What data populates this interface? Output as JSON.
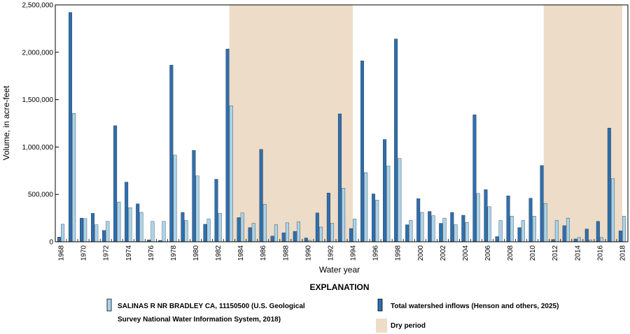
{
  "chart_data": {
    "type": "bar",
    "x": [
      1968,
      1969,
      1970,
      1971,
      1972,
      1973,
      1974,
      1975,
      1976,
      1977,
      1978,
      1979,
      1980,
      1981,
      1982,
      1983,
      1984,
      1985,
      1986,
      1987,
      1988,
      1989,
      1990,
      1991,
      1992,
      1993,
      1994,
      1995,
      1996,
      1997,
      1998,
      1999,
      2000,
      2001,
      2002,
      2003,
      2004,
      2005,
      2006,
      2007,
      2008,
      2009,
      2010,
      2011,
      2012,
      2013,
      2014,
      2015,
      2016,
      2017,
      2018
    ],
    "series": [
      {
        "name": "Total watershed inflows (Henson and others, 2025)",
        "color": "#2e6fb0",
        "values": [
          50000,
          2420000,
          250000,
          300000,
          120000,
          1225000,
          630000,
          400000,
          20000,
          15000,
          1865000,
          310000,
          965000,
          185000,
          660000,
          2035000,
          255000,
          150000,
          975000,
          60000,
          95000,
          110000,
          40000,
          305000,
          515000,
          1350000,
          140000,
          1910000,
          505000,
          1080000,
          2140000,
          180000,
          455000,
          320000,
          195000,
          310000,
          280000,
          1340000,
          550000,
          55000,
          485000,
          150000,
          460000,
          805000,
          25000,
          170000,
          30000,
          135000,
          215000,
          1200000,
          115000
        ]
      },
      {
        "name": "SALINAS R NR BRADLEY CA, 11150500 (U.S. Geological Survey National Water Information System, 2018)",
        "color": "#a9d4ec",
        "values": [
          185000,
          1355000,
          245000,
          180000,
          215000,
          420000,
          360000,
          310000,
          215000,
          215000,
          915000,
          225000,
          695000,
          240000,
          300000,
          1435000,
          305000,
          195000,
          395000,
          180000,
          200000,
          210000,
          15000,
          155000,
          195000,
          565000,
          240000,
          730000,
          440000,
          800000,
          880000,
          225000,
          310000,
          275000,
          250000,
          180000,
          205000,
          510000,
          370000,
          225000,
          270000,
          225000,
          270000,
          405000,
          225000,
          250000,
          45000,
          20000,
          45000,
          665000,
          270000
        ]
      }
    ],
    "dry_periods": [
      [
        1983,
        1994
      ],
      [
        2011,
        2018
      ]
    ],
    "ylim": [
      0,
      2500000
    ],
    "y_ticks": [
      "0",
      "500,000",
      "1,000,000",
      "1,500,000",
      "2,000,000",
      "2,500,000"
    ],
    "x_ticks": [
      "1968",
      "1970",
      "1972",
      "1974",
      "1976",
      "1978",
      "1980",
      "1982",
      "1984",
      "1986",
      "1988",
      "1990",
      "1992",
      "1994",
      "1996",
      "1998",
      "2000",
      "2002",
      "2004",
      "2006",
      "2008",
      "2010",
      "2012",
      "2014",
      "2016",
      "2018"
    ],
    "xlabel": "Water year",
    "ylabel": "Volume, in acre-feet",
    "dry_color": "#eddcc8",
    "grid": false
  },
  "explanation": {
    "title": "EXPLANATION",
    "salinas_line1": "SALINAS R NR BRADLEY CA, 11150500 (U.S. Geological",
    "salinas_line2": "Survey National Water Information System, 2018)",
    "inflow_label": "Total watershed inflows (Henson and others, 2025)",
    "dry_label": "Dry period"
  }
}
